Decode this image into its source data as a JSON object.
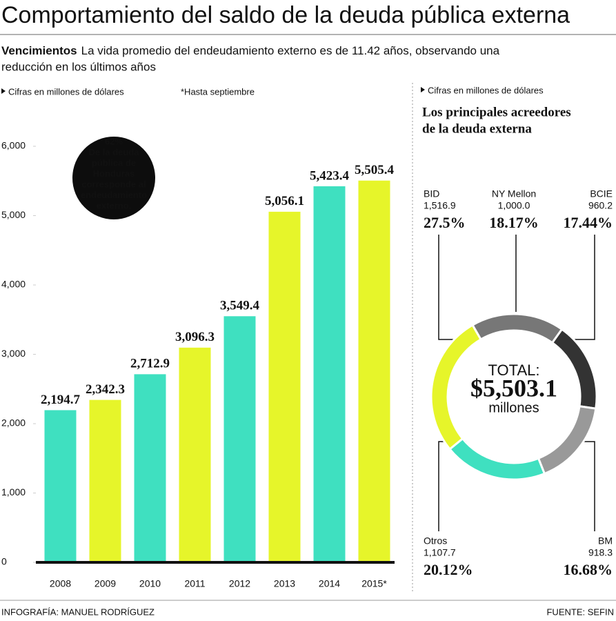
{
  "header": {
    "title": "Comportamiento del saldo de la deuda pública externa",
    "lead": "Vencimientos",
    "subtitle": [
      "La vida promedio del endeudamiento externo es de 11.42 años, observando una",
      "reducción en los últimos años"
    ]
  },
  "footer": {
    "credit": "INFOGRAFÍA: MANUEL RODRÍGUEZ",
    "source": "FUENTE: SEFIN"
  },
  "chart_data": [
    {
      "type": "bar",
      "note": "Cifras en millones de dólares",
      "footnote": "*Hasta septiembre",
      "categories": [
        "2008",
        "2009",
        "2010",
        "2011",
        "2012",
        "2013",
        "2014",
        "2015*"
      ],
      "values": [
        2194.7,
        2342.3,
        2712.9,
        3096.3,
        3549.4,
        5056.1,
        5423.4,
        5505.4
      ],
      "value_labels": [
        "2,194.7",
        "2,342.3",
        "2,712.9",
        "3,096.3",
        "3,549.4",
        "5,056.1",
        "5,423.4",
        "5,505.4"
      ],
      "colors": [
        "#3fe0c0",
        "#e6f52a",
        "#3fe0c0",
        "#e6f52a",
        "#3fe0c0",
        "#e6f52a",
        "#3fe0c0",
        "#e6f52a"
      ],
      "ylim": [
        0,
        6000
      ],
      "yticks": [
        0,
        {
          "value": 1000,
          "label": "1,000"
        },
        {
          "value": 2000,
          "label": "2,000"
        },
        {
          "value": 3000,
          "label": "3,000"
        },
        {
          "value": 4000,
          "label": "4,000"
        },
        {
          "value": 5000,
          "label": "5,000"
        },
        {
          "value": 6000,
          "label": "6,000"
        }
      ],
      "annotation": [
        "62%",
        "De la deuda",
        "pública de",
        "Honduras",
        "corresponde al",
        "endeudamiento",
        "externo."
      ]
    },
    {
      "type": "pie",
      "note": "Cifras en millones de dólares",
      "title": [
        "Los principales acreedores",
        "de la deuda externa"
      ],
      "categories": [
        "BID",
        "NY Mellon",
        "BCIE",
        "BM",
        "Otros"
      ],
      "values": [
        1516.9,
        1000.0,
        960.2,
        918.3,
        1107.7
      ],
      "value_labels": [
        "1,516.9",
        "1,000.0",
        "960.2",
        "918.3",
        "1,107.7"
      ],
      "percents": [
        27.5,
        18.17,
        17.44,
        16.68,
        20.12
      ],
      "percent_labels": [
        "27.5%",
        "18.17%",
        "17.44%",
        "16.68%",
        "20.12%"
      ],
      "colors": [
        "#e6f52a",
        "#777777",
        "#333333",
        "#999999",
        "#3fe0c0"
      ],
      "total_label": "TOTAL:",
      "total": "$5,503.1",
      "total_unit": "millones"
    }
  ]
}
